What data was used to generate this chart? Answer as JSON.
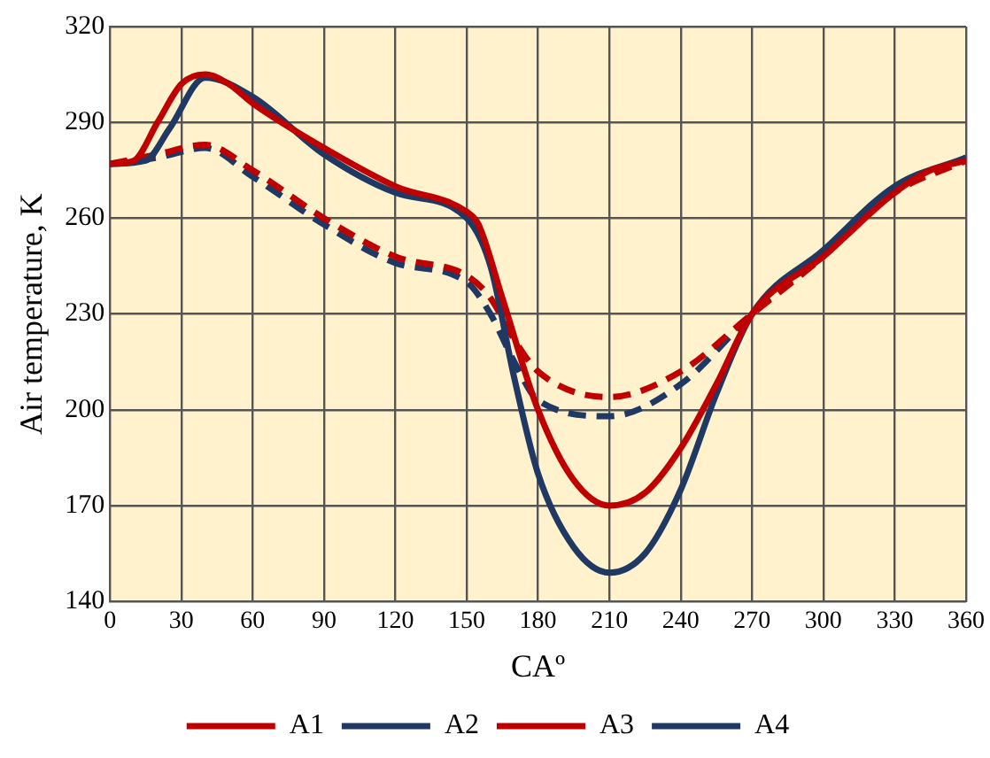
{
  "chart_data": {
    "type": "line",
    "xlabel": "CAº",
    "ylabel": "Air temperature, K",
    "xlim": [
      0,
      360
    ],
    "xticks": [
      0,
      30,
      60,
      90,
      120,
      150,
      180,
      210,
      240,
      270,
      300,
      330,
      360
    ],
    "ylim": [
      140,
      320
    ],
    "yticks": [
      140,
      170,
      200,
      230,
      260,
      290,
      320
    ],
    "grid": true,
    "legend": "bottom",
    "marker": "none",
    "series": [
      {
        "name": "A1",
        "color": "#c00000",
        "line_style": "solid",
        "x": [
          0,
          10,
          20,
          30,
          40,
          50,
          60,
          90,
          120,
          150,
          155,
          165,
          180,
          195,
          210,
          225,
          240,
          255,
          270,
          300,
          330,
          345,
          360
        ],
        "values": [
          277,
          278,
          290,
          302,
          305,
          302,
          296,
          282,
          270,
          262,
          258,
          235,
          200,
          178,
          170,
          174,
          188,
          208,
          230,
          248,
          268,
          275,
          278
        ]
      },
      {
        "name": "A2",
        "color": "#1f3864",
        "line_style": "solid",
        "x": [
          0,
          15,
          25,
          40,
          60,
          90,
          120,
          150,
          160,
          170,
          180,
          195,
          210,
          225,
          240,
          255,
          270,
          300,
          330,
          360
        ],
        "values": [
          277,
          278,
          288,
          304,
          298,
          280,
          268,
          260,
          245,
          210,
          180,
          157,
          149,
          155,
          175,
          205,
          230,
          250,
          270,
          279
        ]
      },
      {
        "name": "A3",
        "color": "#c00000",
        "line_style": "dashed",
        "x": [
          0,
          20,
          40,
          60,
          90,
          120,
          150,
          160,
          170,
          180,
          210,
          240,
          270,
          300,
          330,
          360
        ],
        "values": [
          277,
          280,
          283,
          275,
          260,
          248,
          242,
          235,
          222,
          212,
          204,
          212,
          230,
          248,
          268,
          278
        ]
      },
      {
        "name": "A4",
        "color": "#1f3864",
        "line_style": "dashed",
        "x": [
          0,
          20,
          40,
          60,
          90,
          120,
          150,
          160,
          170,
          180,
          210,
          240,
          270,
          300,
          330,
          360
        ],
        "values": [
          277,
          279,
          282,
          273,
          258,
          246,
          240,
          230,
          215,
          203,
          198,
          208,
          230,
          249,
          269,
          279
        ]
      }
    ]
  }
}
